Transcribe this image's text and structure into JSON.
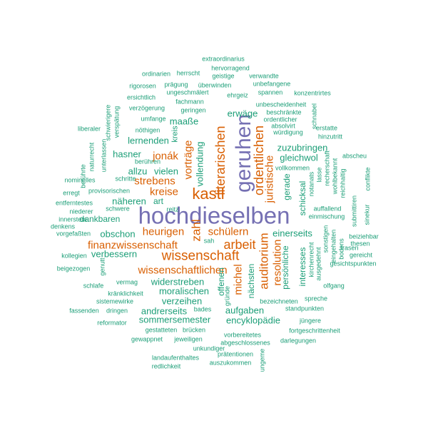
{
  "colors": {
    "primary": "#7570b3",
    "accent": "#d95f02",
    "base": "#1b9e77"
  },
  "words": [
    {
      "text": "hochdieselben",
      "color": "primary"
    },
    {
      "text": "geruhen",
      "color": "primary"
    },
    {
      "text": "kastl",
      "color": "accent"
    },
    {
      "text": "wissenschaft",
      "color": "accent"
    },
    {
      "text": "literarischen",
      "color": "accent"
    },
    {
      "text": "ordentlichen",
      "color": "accent"
    },
    {
      "text": "juristische",
      "color": "accent"
    },
    {
      "text": "arbeit",
      "color": "accent"
    },
    {
      "text": "auditorium",
      "color": "accent"
    },
    {
      "text": "resolution",
      "color": "accent"
    },
    {
      "text": "michel",
      "color": "accent"
    },
    {
      "text": "wissenschaftlichen",
      "color": "accent"
    },
    {
      "text": "finanzwissenschaft",
      "color": "accent"
    },
    {
      "text": "heurigen",
      "color": "accent"
    },
    {
      "text": "schülern",
      "color": "accent"
    },
    {
      "text": "zahl",
      "color": "accent"
    },
    {
      "text": "kreise",
      "color": "accent"
    },
    {
      "text": "strebens",
      "color": "accent"
    },
    {
      "text": "vorträge",
      "color": "accent"
    },
    {
      "text": "jonák",
      "color": "accent"
    },
    {
      "text": "vollendung",
      "color": "base"
    },
    {
      "text": "erwäge",
      "color": "base"
    },
    {
      "text": "maaße",
      "color": "base"
    },
    {
      "text": "lernenden",
      "color": "base"
    },
    {
      "text": "hasner",
      "color": "base"
    },
    {
      "text": "allzu",
      "color": "base"
    },
    {
      "text": "vielen",
      "color": "base"
    },
    {
      "text": "zuzubringen",
      "color": "base"
    },
    {
      "text": "gleichwol",
      "color": "base"
    },
    {
      "text": "gerade",
      "color": "base"
    },
    {
      "text": "schicksal",
      "color": "base"
    },
    {
      "text": "einerseits",
      "color": "base"
    },
    {
      "text": "obschon",
      "color": "base"
    },
    {
      "text": "näheren",
      "color": "base"
    },
    {
      "text": "dankbaren",
      "color": "base"
    },
    {
      "text": "art",
      "color": "base"
    },
    {
      "text": "verbessern",
      "color": "base"
    },
    {
      "text": "widerstreben",
      "color": "base"
    },
    {
      "text": "moralischen",
      "color": "base"
    },
    {
      "text": "verzeihen",
      "color": "base"
    },
    {
      "text": "andrerseits",
      "color": "base"
    },
    {
      "text": "sommersemester",
      "color": "base"
    },
    {
      "text": "aufgaben",
      "color": "base"
    },
    {
      "text": "encyklopädie",
      "color": "base"
    },
    {
      "text": "nächsten",
      "color": "base"
    },
    {
      "text": "offenen",
      "color": "base"
    },
    {
      "text": "persönliche",
      "color": "base"
    },
    {
      "text": "interesses",
      "color": "base"
    },
    {
      "text": "kreis",
      "color": "base"
    },
    {
      "text": "extraordinarius",
      "color": "base"
    },
    {
      "text": "hervorragend",
      "color": "base"
    },
    {
      "text": "ordinarien",
      "color": "base"
    },
    {
      "text": "herrscht",
      "color": "base"
    },
    {
      "text": "geistige",
      "color": "base"
    },
    {
      "text": "verwandte",
      "color": "base"
    },
    {
      "text": "rigorosen",
      "color": "base"
    },
    {
      "text": "prägung",
      "color": "base"
    },
    {
      "text": "überwinden",
      "color": "base"
    },
    {
      "text": "unbefangene",
      "color": "base"
    },
    {
      "text": "ersichtlich",
      "color": "base"
    },
    {
      "text": "ungeschmälert",
      "color": "base"
    },
    {
      "text": "ehrgeiz",
      "color": "base"
    },
    {
      "text": "spannen",
      "color": "base"
    },
    {
      "text": "konzentrirtes",
      "color": "base"
    },
    {
      "text": "fachmann",
      "color": "base"
    },
    {
      "text": "verzögerung",
      "color": "base"
    },
    {
      "text": "geringen",
      "color": "base"
    },
    {
      "text": "unbescheidenheit",
      "color": "base"
    },
    {
      "text": "beschränkte",
      "color": "base"
    },
    {
      "text": "ordentlicher",
      "color": "base"
    },
    {
      "text": "absolvirt",
      "color": "base"
    },
    {
      "text": "würdigung",
      "color": "base"
    },
    {
      "text": "umfange",
      "color": "base"
    },
    {
      "text": "nöthigen",
      "color": "base"
    },
    {
      "text": "erstatte",
      "color": "base"
    },
    {
      "text": "hinzutritt",
      "color": "base"
    },
    {
      "text": "schnabel",
      "color": "base"
    },
    {
      "text": "liberaler",
      "color": "base"
    },
    {
      "text": "schwierigere",
      "color": "base"
    },
    {
      "text": "verspätung",
      "color": "base"
    },
    {
      "text": "berühren",
      "color": "base"
    },
    {
      "text": "unterlassen",
      "color": "base"
    },
    {
      "text": "naturrecht",
      "color": "base"
    },
    {
      "text": "berührte",
      "color": "base"
    },
    {
      "text": "schritte",
      "color": "base"
    },
    {
      "text": "nominelles",
      "color": "base"
    },
    {
      "text": "erregt",
      "color": "base"
    },
    {
      "text": "provisorischen",
      "color": "base"
    },
    {
      "text": "entferntestes",
      "color": "base"
    },
    {
      "text": "niederer",
      "color": "base"
    },
    {
      "text": "schwere",
      "color": "base"
    },
    {
      "text": "reitz",
      "color": "base"
    },
    {
      "text": "innerstem",
      "color": "base"
    },
    {
      "text": "denkens",
      "color": "base"
    },
    {
      "text": "vorgefaßten",
      "color": "base"
    },
    {
      "text": "vollkommen",
      "color": "base"
    },
    {
      "text": "notanats",
      "color": "base"
    },
    {
      "text": "lasse",
      "color": "base"
    },
    {
      "text": "recherschaft",
      "color": "base"
    },
    {
      "text": "wohlbekannt",
      "color": "base"
    },
    {
      "text": "reichhaltig",
      "color": "base"
    },
    {
      "text": "abscheu",
      "color": "base"
    },
    {
      "text": "conflikte",
      "color": "base"
    },
    {
      "text": "auffallend",
      "color": "base"
    },
    {
      "text": "einmischung",
      "color": "base"
    },
    {
      "text": "sinekur",
      "color": "base"
    },
    {
      "text": "submittiren",
      "color": "base"
    },
    {
      "text": "sonstigen",
      "color": "base"
    },
    {
      "text": "eingehalten",
      "color": "base"
    },
    {
      "text": "bodens",
      "color": "base"
    },
    {
      "text": "beiziehbar",
      "color": "base"
    },
    {
      "text": "thesen",
      "color": "base"
    },
    {
      "text": "gereicht",
      "color": "base"
    },
    {
      "text": "frasen",
      "color": "base"
    },
    {
      "text": "kirchenrecht",
      "color": "base"
    },
    {
      "text": "ausgedehnt",
      "color": "base"
    },
    {
      "text": "gesichtspunkten",
      "color": "base"
    },
    {
      "text": "olfgang",
      "color": "base"
    },
    {
      "text": "kollegien",
      "color": "base"
    },
    {
      "text": "beigezogen",
      "color": "base"
    },
    {
      "text": "vermag",
      "color": "base"
    },
    {
      "text": "schlafe",
      "color": "base"
    },
    {
      "text": "genutt",
      "color": "base"
    },
    {
      "text": "kränklichkeit",
      "color": "base"
    },
    {
      "text": "sistemewirke",
      "color": "base"
    },
    {
      "text": "fassenden",
      "color": "base"
    },
    {
      "text": "dringen",
      "color": "base"
    },
    {
      "text": "bades",
      "color": "base"
    },
    {
      "text": "reformator",
      "color": "base"
    },
    {
      "text": "gestatteten",
      "color": "base"
    },
    {
      "text": "brücken",
      "color": "base"
    },
    {
      "text": "gewappnet",
      "color": "base"
    },
    {
      "text": "jeweiligen",
      "color": "base"
    },
    {
      "text": "unkundiger",
      "color": "base"
    },
    {
      "text": "landaufenthaltes",
      "color": "base"
    },
    {
      "text": "redlichkeit",
      "color": "base"
    },
    {
      "text": "sah",
      "color": "base"
    },
    {
      "text": "gründe",
      "color": "base"
    },
    {
      "text": "bezeichneten",
      "color": "base"
    },
    {
      "text": "jüngere",
      "color": "base"
    },
    {
      "text": "spreche",
      "color": "base"
    },
    {
      "text": "standpunkten",
      "color": "base"
    },
    {
      "text": "fortgeschrittenheit",
      "color": "base"
    },
    {
      "text": "vorbereitetes",
      "color": "base"
    },
    {
      "text": "abgeschlossenes",
      "color": "base"
    },
    {
      "text": "darlegungen",
      "color": "base"
    },
    {
      "text": "prätentionen",
      "color": "base"
    },
    {
      "text": "auszukommen",
      "color": "base"
    },
    {
      "text": "ungeme",
      "color": "base"
    }
  ]
}
